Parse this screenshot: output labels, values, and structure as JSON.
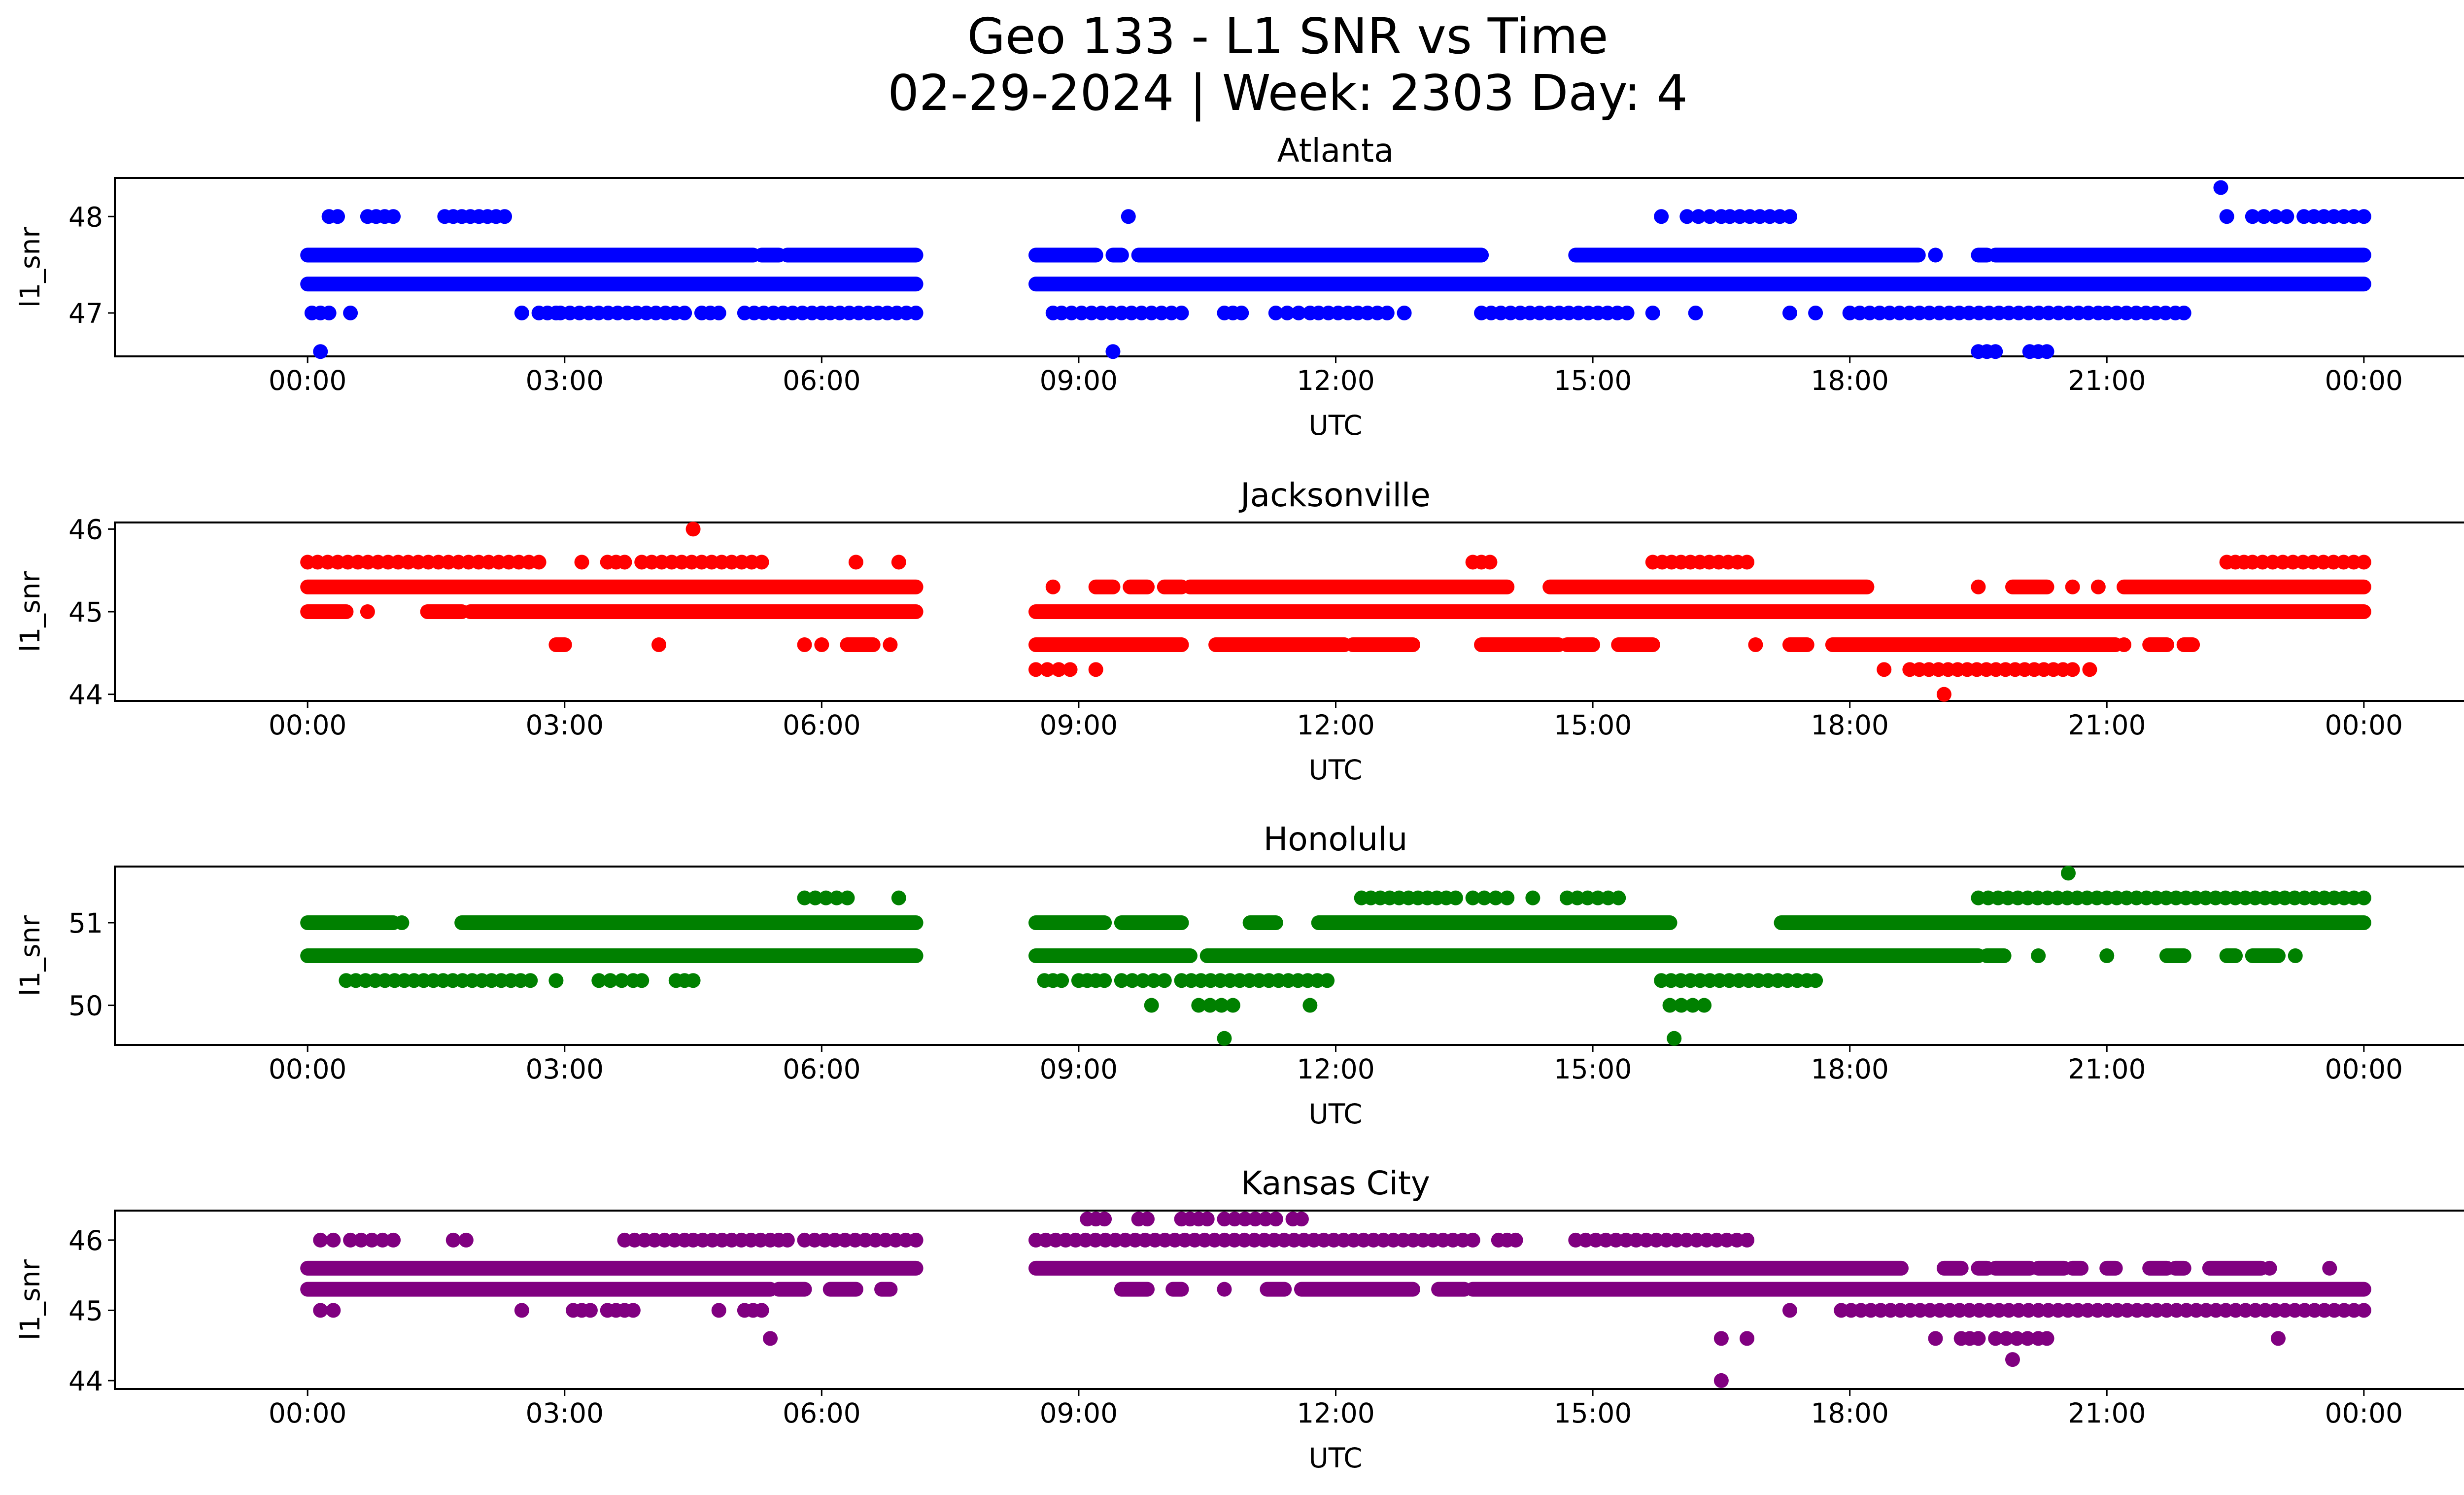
{
  "figure": {
    "title_line1": "Geo 133 - L1 SNR vs Time",
    "title_line2": "02-29-2024 | Week: 2303 Day: 4"
  },
  "chart_data": [
    {
      "type": "scatter",
      "title": "Atlanta",
      "xlabel": "UTC",
      "ylabel": "l1_snr",
      "color": "#0000ff",
      "xlim_hours": [
        -2.25,
        26.25
      ],
      "ylim": [
        46.55,
        48.4
      ],
      "xticks": [
        "00:00",
        "03:00",
        "06:00",
        "09:00",
        "12:00",
        "15:00",
        "18:00",
        "21:00",
        "00:00"
      ],
      "xtick_hours": [
        0,
        3,
        6,
        9,
        12,
        15,
        18,
        21,
        24
      ],
      "yticks": [
        47,
        48
      ],
      "data_gap_hours": [
        7.1,
        8.5
      ],
      "dense_levels": [
        47.3,
        47.6
      ],
      "levels": [
        {
          "y": 48.3,
          "spans": [
            [
              22.33,
              22.33
            ]
          ]
        },
        {
          "y": 48.0,
          "spans": [
            [
              0.25,
              0.35
            ],
            [
              0.7,
              1.0
            ],
            [
              1.6,
              1.9
            ],
            [
              2.0,
              2.3
            ],
            [
              9.58,
              9.58
            ],
            [
              15.8,
              15.8
            ],
            [
              16.1,
              16.5
            ],
            [
              16.6,
              17.3
            ],
            [
              22.4,
              22.4
            ],
            [
              22.7,
              23.1
            ],
            [
              23.3,
              24.0
            ]
          ]
        },
        {
          "y": 47.6,
          "spans": [
            [
              0.0,
              5.2
            ],
            [
              5.3,
              5.5
            ],
            [
              5.6,
              7.1
            ],
            [
              8.5,
              9.2
            ],
            [
              9.4,
              9.5
            ],
            [
              9.7,
              13.7
            ],
            [
              14.8,
              18.6
            ],
            [
              18.6,
              18.8
            ],
            [
              19.0,
              19.0
            ],
            [
              19.5,
              19.6
            ],
            [
              19.7,
              24.0
            ]
          ]
        },
        {
          "y": 47.3,
          "spans": [
            [
              0.0,
              7.1
            ],
            [
              8.5,
              24.0
            ]
          ]
        },
        {
          "y": 47.0,
          "spans": [
            [
              0.05,
              0.25
            ],
            [
              0.5,
              0.5
            ],
            [
              2.5,
              2.5
            ],
            [
              2.7,
              2.9
            ],
            [
              2.95,
              4.4
            ],
            [
              4.6,
              4.8
            ],
            [
              5.1,
              6.0
            ],
            [
              6.1,
              7.1
            ],
            [
              8.7,
              8.7
            ],
            [
              8.8,
              10.2
            ],
            [
              10.7,
              10.9
            ],
            [
              11.3,
              11.7
            ],
            [
              11.8,
              12.6
            ],
            [
              12.8,
              12.8
            ],
            [
              13.7,
              15.4
            ],
            [
              15.7,
              15.7
            ],
            [
              16.2,
              16.2
            ],
            [
              17.3,
              17.3
            ],
            [
              17.6,
              17.6
            ],
            [
              18.0,
              20.9
            ],
            [
              21.0,
              21.8
            ],
            [
              21.9,
              21.9
            ]
          ]
        },
        {
          "y": 46.6,
          "spans": [
            [
              0.15,
              0.15
            ],
            [
              9.4,
              9.4
            ],
            [
              19.5,
              19.7
            ],
            [
              20.1,
              20.3
            ]
          ]
        }
      ]
    },
    {
      "type": "scatter",
      "title": "Jacksonville",
      "xlabel": "UTC",
      "ylabel": "l1_snr",
      "color": "#ff0000",
      "xlim_hours": [
        -2.25,
        26.25
      ],
      "ylim": [
        43.92,
        46.08
      ],
      "xticks": [
        "00:00",
        "03:00",
        "06:00",
        "09:00",
        "12:00",
        "15:00",
        "18:00",
        "21:00",
        "00:00"
      ],
      "xtick_hours": [
        0,
        3,
        6,
        9,
        12,
        15,
        18,
        21,
        24
      ],
      "yticks": [
        44,
        45,
        46
      ],
      "data_gap_hours": [
        7.1,
        8.5
      ],
      "dense_levels": [
        45.3,
        45.0,
        44.6
      ],
      "levels": [
        {
          "y": 46.0,
          "spans": [
            [
              4.5,
              4.5
            ]
          ]
        },
        {
          "y": 45.6,
          "spans": [
            [
              0.0,
              2.7
            ],
            [
              3.2,
              3.2
            ],
            [
              3.5,
              3.7
            ],
            [
              3.9,
              5.3
            ],
            [
              6.4,
              6.4
            ],
            [
              6.9,
              6.9
            ],
            [
              13.6,
              13.8
            ],
            [
              15.7,
              16.8
            ],
            [
              22.4,
              22.6
            ],
            [
              22.7,
              24.0
            ]
          ]
        },
        {
          "y": 45.3,
          "spans": [
            [
              0.0,
              7.1
            ],
            [
              8.7,
              8.7
            ],
            [
              9.2,
              9.4
            ],
            [
              9.6,
              9.8
            ],
            [
              10.0,
              10.2
            ],
            [
              10.3,
              14.0
            ],
            [
              14.5,
              18.2
            ],
            [
              19.5,
              19.5
            ],
            [
              19.9,
              20.3
            ],
            [
              20.6,
              20.6
            ],
            [
              20.9,
              20.9
            ],
            [
              21.2,
              24.0
            ]
          ]
        },
        {
          "y": 45.0,
          "spans": [
            [
              0.0,
              0.45
            ],
            [
              0.7,
              0.7
            ],
            [
              1.4,
              1.8
            ],
            [
              1.9,
              7.1
            ],
            [
              8.5,
              24.0
            ]
          ]
        },
        {
          "y": 44.6,
          "spans": [
            [
              2.9,
              3.0
            ],
            [
              4.1,
              4.1
            ],
            [
              5.8,
              5.8
            ],
            [
              6.0,
              6.0
            ],
            [
              6.3,
              6.6
            ],
            [
              6.8,
              6.8
            ],
            [
              8.5,
              10.2
            ],
            [
              10.6,
              12.1
            ],
            [
              12.2,
              12.9
            ],
            [
              13.7,
              14.6
            ],
            [
              14.7,
              15.0
            ],
            [
              15.3,
              15.7
            ],
            [
              16.9,
              16.9
            ],
            [
              17.3,
              17.5
            ],
            [
              17.8,
              21.1
            ],
            [
              21.2,
              21.2
            ],
            [
              21.5,
              21.7
            ],
            [
              21.9,
              22.0
            ]
          ]
        },
        {
          "y": 44.3,
          "spans": [
            [
              8.5,
              8.9
            ],
            [
              9.2,
              9.2
            ],
            [
              18.4,
              18.4
            ],
            [
              18.7,
              20.6
            ],
            [
              20.8,
              20.8
            ]
          ]
        },
        {
          "y": 44.0,
          "spans": [
            [
              19.1,
              19.1
            ]
          ]
        }
      ]
    },
    {
      "type": "scatter",
      "title": "Honolulu",
      "xlabel": "UTC",
      "ylabel": "l1_snr",
      "color": "#008000",
      "xlim_hours": [
        -2.25,
        26.25
      ],
      "ylim": [
        49.52,
        51.68
      ],
      "xticks": [
        "00:00",
        "03:00",
        "06:00",
        "09:00",
        "12:00",
        "15:00",
        "18:00",
        "21:00",
        "00:00"
      ],
      "xtick_hours": [
        0,
        3,
        6,
        9,
        12,
        15,
        18,
        21,
        24
      ],
      "yticks": [
        50,
        51
      ],
      "data_gap_hours": [
        7.1,
        8.5
      ],
      "dense_levels": [
        51.0,
        50.6
      ],
      "levels": [
        {
          "y": 51.6,
          "spans": [
            [
              20.55,
              20.55
            ]
          ]
        },
        {
          "y": 51.3,
          "spans": [
            [
              5.8,
              6.3
            ],
            [
              6.9,
              6.9
            ],
            [
              12.3,
              13.4
            ],
            [
              13.6,
              14.0
            ],
            [
              14.3,
              14.3
            ],
            [
              14.7,
              15.3
            ],
            [
              19.5,
              24.0
            ]
          ]
        },
        {
          "y": 51.0,
          "spans": [
            [
              0.0,
              1.0
            ],
            [
              1.1,
              1.1
            ],
            [
              1.8,
              7.1
            ],
            [
              8.5,
              9.3
            ],
            [
              9.5,
              10.2
            ],
            [
              11.0,
              11.3
            ],
            [
              11.8,
              15.9
            ],
            [
              17.2,
              24.0
            ]
          ]
        },
        {
          "y": 50.6,
          "spans": [
            [
              0.0,
              7.1
            ],
            [
              8.5,
              10.3
            ],
            [
              10.5,
              19.5
            ],
            [
              19.6,
              19.8
            ],
            [
              20.2,
              20.2
            ],
            [
              21.0,
              21.0
            ],
            [
              21.7,
              21.9
            ],
            [
              22.4,
              22.5
            ],
            [
              22.7,
              22.8
            ],
            [
              22.8,
              23.0
            ],
            [
              23.2,
              23.2
            ]
          ]
        },
        {
          "y": 50.3,
          "spans": [
            [
              0.45,
              2.6
            ],
            [
              2.9,
              2.9
            ],
            [
              3.4,
              3.8
            ],
            [
              3.9,
              3.9
            ],
            [
              4.3,
              4.4
            ],
            [
              4.5,
              4.5
            ],
            [
              8.6,
              8.8
            ],
            [
              9.0,
              9.3
            ],
            [
              9.5,
              10.0
            ],
            [
              10.2,
              11.9
            ],
            [
              15.8,
              17.5
            ],
            [
              17.6,
              17.6
            ]
          ]
        },
        {
          "y": 50.0,
          "spans": [
            [
              9.85,
              9.85
            ],
            [
              10.4,
              10.8
            ],
            [
              11.7,
              11.7
            ],
            [
              15.9,
              16.3
            ]
          ]
        },
        {
          "y": 49.6,
          "spans": [
            [
              10.7,
              10.7
            ],
            [
              15.95,
              15.95
            ]
          ]
        }
      ]
    },
    {
      "type": "scatter",
      "title": "Kansas City",
      "xlabel": "UTC",
      "ylabel": "l1_snr",
      "color": "#800080",
      "xlim_hours": [
        -2.25,
        26.25
      ],
      "ylim": [
        43.88,
        46.42
      ],
      "xticks": [
        "00:00",
        "03:00",
        "06:00",
        "09:00",
        "12:00",
        "15:00",
        "18:00",
        "21:00",
        "00:00"
      ],
      "xtick_hours": [
        0,
        3,
        6,
        9,
        12,
        15,
        18,
        21,
        24
      ],
      "yticks": [
        44,
        45,
        46
      ],
      "data_gap_hours": [
        7.1,
        8.5
      ],
      "dense_levels": [
        45.6,
        45.3
      ],
      "levels": [
        {
          "y": 46.3,
          "spans": [
            [
              9.1,
              9.3
            ],
            [
              9.7,
              9.8
            ],
            [
              10.2,
              10.5
            ],
            [
              10.7,
              11.3
            ],
            [
              11.5,
              11.6
            ]
          ]
        },
        {
          "y": 46.0,
          "spans": [
            [
              0.15,
              0.3
            ],
            [
              0.5,
              1.0
            ],
            [
              1.7,
              1.85
            ],
            [
              3.7,
              4.4
            ],
            [
              4.5,
              5.4
            ],
            [
              5.5,
              5.6
            ],
            [
              5.8,
              7.1
            ],
            [
              8.5,
              13.6
            ],
            [
              13.9,
              14.0
            ],
            [
              14.1,
              14.1
            ],
            [
              14.8,
              16.8
            ]
          ]
        },
        {
          "y": 45.6,
          "spans": [
            [
              0.0,
              7.1
            ],
            [
              8.5,
              18.6
            ],
            [
              19.1,
              19.3
            ],
            [
              19.5,
              19.6
            ],
            [
              19.7,
              20.1
            ],
            [
              20.2,
              20.5
            ],
            [
              20.6,
              20.7
            ],
            [
              21.0,
              21.1
            ],
            [
              21.5,
              21.7
            ],
            [
              21.8,
              21.9
            ],
            [
              22.2,
              22.8
            ],
            [
              22.9,
              22.9
            ],
            [
              23.6,
              23.6
            ]
          ]
        },
        {
          "y": 45.3,
          "spans": [
            [
              0.0,
              5.4
            ],
            [
              5.5,
              5.8
            ],
            [
              6.1,
              6.4
            ],
            [
              6.7,
              6.8
            ],
            [
              9.5,
              9.8
            ],
            [
              10.1,
              10.2
            ],
            [
              10.7,
              10.7
            ],
            [
              11.2,
              11.4
            ],
            [
              11.6,
              12.9
            ],
            [
              13.2,
              13.5
            ],
            [
              13.6,
              24.0
            ]
          ]
        },
        {
          "y": 45.0,
          "spans": [
            [
              0.15,
              0.3
            ],
            [
              2.5,
              2.5
            ],
            [
              3.1,
              3.3
            ],
            [
              3.5,
              3.6
            ],
            [
              3.7,
              3.8
            ],
            [
              4.8,
              4.8
            ],
            [
              5.1,
              5.3
            ],
            [
              17.3,
              17.3
            ],
            [
              17.9,
              24.0
            ]
          ]
        },
        {
          "y": 44.6,
          "spans": [
            [
              5.4,
              5.4
            ],
            [
              16.5,
              16.5
            ],
            [
              16.8,
              16.8
            ],
            [
              19.0,
              19.0
            ],
            [
              19.3,
              19.5
            ],
            [
              19.7,
              20.2
            ],
            [
              20.3,
              20.3
            ],
            [
              23.0,
              23.0
            ]
          ]
        },
        {
          "y": 44.3,
          "spans": [
            [
              19.9,
              19.9
            ]
          ]
        },
        {
          "y": 44.0,
          "spans": [
            [
              16.5,
              16.5
            ]
          ]
        }
      ]
    }
  ]
}
